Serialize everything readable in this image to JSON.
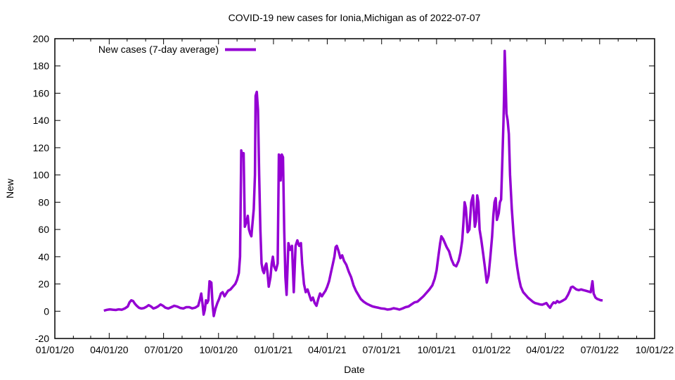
{
  "page": {
    "background": "#ffffff",
    "text_color": "#000000",
    "axis_color": "#000000"
  },
  "chart_data": {
    "type": "line",
    "title": "COVID-19 new cases for Ionia,Michigan as of 2022-07-07",
    "xlabel": "Date",
    "ylabel": "New",
    "grid": false,
    "legend_position": "top-left-inside",
    "legend": [
      {
        "label": "New cases (7-day average)",
        "color": "#9400d3"
      }
    ],
    "x_range": [
      "2020-01-01",
      "2022-10-01"
    ],
    "ylim": [
      -20,
      200
    ],
    "y_ticks": [
      {
        "value": -20,
        "label": "-20"
      },
      {
        "value": 0,
        "label": "0"
      },
      {
        "value": 20,
        "label": "20"
      },
      {
        "value": 40,
        "label": "40"
      },
      {
        "value": 60,
        "label": "60"
      },
      {
        "value": 80,
        "label": "80"
      },
      {
        "value": 100,
        "label": "100"
      },
      {
        "value": 120,
        "label": "120"
      },
      {
        "value": 140,
        "label": "140"
      },
      {
        "value": 160,
        "label": "160"
      },
      {
        "value": 180,
        "label": "180"
      },
      {
        "value": 200,
        "label": "200"
      }
    ],
    "x_major_ticks": [
      {
        "date": "2020-01-01",
        "label": "01/01/20"
      },
      {
        "date": "2020-04-01",
        "label": "04/01/20"
      },
      {
        "date": "2020-07-01",
        "label": "07/01/20"
      },
      {
        "date": "2020-10-01",
        "label": "10/01/20"
      },
      {
        "date": "2021-01-01",
        "label": "01/01/21"
      },
      {
        "date": "2021-04-01",
        "label": "04/01/21"
      },
      {
        "date": "2021-07-01",
        "label": "07/01/21"
      },
      {
        "date": "2021-10-01",
        "label": "10/01/21"
      },
      {
        "date": "2022-01-01",
        "label": "01/01/22"
      },
      {
        "date": "2022-04-01",
        "label": "04/01/22"
      },
      {
        "date": "2022-07-01",
        "label": "07/01/22"
      },
      {
        "date": "2022-10-01",
        "label": "10/01/22"
      }
    ],
    "x_minor_tick_interval": "month",
    "series": [
      {
        "name": "New cases (7-day average)",
        "color": "#9400d3",
        "points": [
          [
            "2020-03-23",
            0.4
          ],
          [
            "2020-03-28",
            1
          ],
          [
            "2020-04-02",
            1.4
          ],
          [
            "2020-04-07",
            1.1
          ],
          [
            "2020-04-12",
            0.9
          ],
          [
            "2020-04-17",
            1.4
          ],
          [
            "2020-04-22",
            1.1
          ],
          [
            "2020-04-27",
            2
          ],
          [
            "2020-05-02",
            3.5
          ],
          [
            "2020-05-05",
            6.5
          ],
          [
            "2020-05-08",
            8
          ],
          [
            "2020-05-11",
            7.5
          ],
          [
            "2020-05-14",
            5.5
          ],
          [
            "2020-05-17",
            4
          ],
          [
            "2020-05-21",
            2.5
          ],
          [
            "2020-05-25",
            2
          ],
          [
            "2020-05-29",
            2.3
          ],
          [
            "2020-06-02",
            3.2
          ],
          [
            "2020-06-06",
            4.5
          ],
          [
            "2020-06-10",
            3.5
          ],
          [
            "2020-06-14",
            2
          ],
          [
            "2020-06-18",
            2.6
          ],
          [
            "2020-06-22",
            3.6
          ],
          [
            "2020-06-26",
            5
          ],
          [
            "2020-06-30",
            4
          ],
          [
            "2020-07-04",
            2.6
          ],
          [
            "2020-07-09",
            2
          ],
          [
            "2020-07-14",
            3
          ],
          [
            "2020-07-19",
            4
          ],
          [
            "2020-07-24",
            3.4
          ],
          [
            "2020-07-29",
            2.4
          ],
          [
            "2020-08-03",
            2
          ],
          [
            "2020-08-08",
            3
          ],
          [
            "2020-08-13",
            3
          ],
          [
            "2020-08-18",
            2.1
          ],
          [
            "2020-08-23",
            2.6
          ],
          [
            "2020-08-28",
            4
          ],
          [
            "2020-08-31",
            9
          ],
          [
            "2020-09-02",
            13
          ],
          [
            "2020-09-04",
            6
          ],
          [
            "2020-09-06",
            -2.5
          ],
          [
            "2020-09-08",
            1
          ],
          [
            "2020-09-10",
            8
          ],
          [
            "2020-09-12",
            6
          ],
          [
            "2020-09-14",
            8
          ],
          [
            "2020-09-16",
            22
          ],
          [
            "2020-09-19",
            21
          ],
          [
            "2020-09-21",
            5
          ],
          [
            "2020-09-23",
            -3.5
          ],
          [
            "2020-09-26",
            2
          ],
          [
            "2020-09-29",
            6
          ],
          [
            "2020-10-02",
            9
          ],
          [
            "2020-10-05",
            13
          ],
          [
            "2020-10-08",
            14
          ],
          [
            "2020-10-11",
            11
          ],
          [
            "2020-10-14",
            13
          ],
          [
            "2020-10-17",
            15
          ],
          [
            "2020-10-21",
            16
          ],
          [
            "2020-10-25",
            18
          ],
          [
            "2020-10-29",
            20
          ],
          [
            "2020-11-01",
            23
          ],
          [
            "2020-11-04",
            28
          ],
          [
            "2020-11-06",
            40
          ],
          [
            "2020-11-08",
            118
          ],
          [
            "2020-11-10",
            114
          ],
          [
            "2020-11-12",
            116
          ],
          [
            "2020-11-14",
            62
          ],
          [
            "2020-11-17",
            66
          ],
          [
            "2020-11-19",
            70
          ],
          [
            "2020-11-21",
            60
          ],
          [
            "2020-11-23",
            57
          ],
          [
            "2020-11-25",
            55
          ],
          [
            "2020-11-27",
            65
          ],
          [
            "2020-11-29",
            75
          ],
          [
            "2020-12-01",
            100
          ],
          [
            "2020-12-02",
            158
          ],
          [
            "2020-12-04",
            161
          ],
          [
            "2020-12-06",
            148
          ],
          [
            "2020-12-08",
            100
          ],
          [
            "2020-12-10",
            60
          ],
          [
            "2020-12-12",
            35
          ],
          [
            "2020-12-14",
            30
          ],
          [
            "2020-12-16",
            28
          ],
          [
            "2020-12-18",
            33
          ],
          [
            "2020-12-20",
            35
          ],
          [
            "2020-12-22",
            28
          ],
          [
            "2020-12-24",
            18
          ],
          [
            "2020-12-27",
            25
          ],
          [
            "2020-12-29",
            35
          ],
          [
            "2020-12-31",
            40
          ],
          [
            "2021-01-02",
            33
          ],
          [
            "2021-01-05",
            30
          ],
          [
            "2021-01-08",
            35
          ],
          [
            "2021-01-10",
            115
          ],
          [
            "2021-01-12",
            114
          ],
          [
            "2021-01-13",
            96
          ],
          [
            "2021-01-15",
            115
          ],
          [
            "2021-01-17",
            113
          ],
          [
            "2021-01-19",
            60
          ],
          [
            "2021-01-21",
            25
          ],
          [
            "2021-01-23",
            12
          ],
          [
            "2021-01-26",
            50
          ],
          [
            "2021-01-29",
            45
          ],
          [
            "2021-02-01",
            48
          ],
          [
            "2021-02-04",
            14
          ],
          [
            "2021-02-07",
            48
          ],
          [
            "2021-02-10",
            52
          ],
          [
            "2021-02-13",
            48
          ],
          [
            "2021-02-16",
            50
          ],
          [
            "2021-02-18",
            35
          ],
          [
            "2021-02-21",
            20
          ],
          [
            "2021-02-24",
            14
          ],
          [
            "2021-02-27",
            16
          ],
          [
            "2021-03-02",
            12
          ],
          [
            "2021-03-05",
            8
          ],
          [
            "2021-03-08",
            10
          ],
          [
            "2021-03-11",
            6
          ],
          [
            "2021-03-14",
            4
          ],
          [
            "2021-03-17",
            9
          ],
          [
            "2021-03-20",
            13
          ],
          [
            "2021-03-23",
            11
          ],
          [
            "2021-03-26",
            13
          ],
          [
            "2021-03-29",
            15
          ],
          [
            "2021-04-01",
            18
          ],
          [
            "2021-04-04",
            22
          ],
          [
            "2021-04-07",
            28
          ],
          [
            "2021-04-10",
            34
          ],
          [
            "2021-04-13",
            40
          ],
          [
            "2021-04-15",
            47
          ],
          [
            "2021-04-17",
            48
          ],
          [
            "2021-04-20",
            44
          ],
          [
            "2021-04-23",
            39
          ],
          [
            "2021-04-26",
            41
          ],
          [
            "2021-04-29",
            37
          ],
          [
            "2021-05-03",
            34
          ],
          [
            "2021-05-07",
            29
          ],
          [
            "2021-05-11",
            25
          ],
          [
            "2021-05-15",
            19
          ],
          [
            "2021-05-19",
            15
          ],
          [
            "2021-05-23",
            12
          ],
          [
            "2021-05-27",
            9
          ],
          [
            "2021-06-01",
            7
          ],
          [
            "2021-06-06",
            5.5
          ],
          [
            "2021-06-11",
            4.5
          ],
          [
            "2021-06-16",
            3.5
          ],
          [
            "2021-06-21",
            3
          ],
          [
            "2021-06-26",
            2.5
          ],
          [
            "2021-07-01",
            2
          ],
          [
            "2021-07-06",
            1.8
          ],
          [
            "2021-07-11",
            1.2
          ],
          [
            "2021-07-16",
            1.5
          ],
          [
            "2021-07-21",
            2.2
          ],
          [
            "2021-07-26",
            1.8
          ],
          [
            "2021-07-31",
            1.2
          ],
          [
            "2021-08-05",
            2
          ],
          [
            "2021-08-10",
            3
          ],
          [
            "2021-08-15",
            3.5
          ],
          [
            "2021-08-20",
            5
          ],
          [
            "2021-08-25",
            6.5
          ],
          [
            "2021-08-30",
            7
          ],
          [
            "2021-09-04",
            9
          ],
          [
            "2021-09-09",
            11
          ],
          [
            "2021-09-14",
            13.5
          ],
          [
            "2021-09-19",
            16
          ],
          [
            "2021-09-24",
            19
          ],
          [
            "2021-09-28",
            24
          ],
          [
            "2021-10-01",
            30
          ],
          [
            "2021-10-04",
            40
          ],
          [
            "2021-10-07",
            50
          ],
          [
            "2021-10-09",
            55
          ],
          [
            "2021-10-12",
            53
          ],
          [
            "2021-10-15",
            50
          ],
          [
            "2021-10-18",
            47
          ],
          [
            "2021-10-22",
            44
          ],
          [
            "2021-10-26",
            38
          ],
          [
            "2021-10-30",
            34
          ],
          [
            "2021-11-03",
            33
          ],
          [
            "2021-11-07",
            37
          ],
          [
            "2021-11-10",
            43
          ],
          [
            "2021-11-13",
            52
          ],
          [
            "2021-11-15",
            65
          ],
          [
            "2021-11-17",
            80
          ],
          [
            "2021-11-19",
            76
          ],
          [
            "2021-11-22",
            58
          ],
          [
            "2021-11-25",
            60
          ],
          [
            "2021-11-28",
            80
          ],
          [
            "2021-12-01",
            85
          ],
          [
            "2021-12-04",
            62
          ],
          [
            "2021-12-06",
            66
          ],
          [
            "2021-12-08",
            85
          ],
          [
            "2021-12-10",
            80
          ],
          [
            "2021-12-12",
            60
          ],
          [
            "2021-12-15",
            52
          ],
          [
            "2021-12-18",
            42
          ],
          [
            "2021-12-21",
            32
          ],
          [
            "2021-12-24",
            21
          ],
          [
            "2021-12-27",
            26
          ],
          [
            "2021-12-30",
            40
          ],
          [
            "2022-01-02",
            55
          ],
          [
            "2022-01-04",
            70
          ],
          [
            "2022-01-06",
            80
          ],
          [
            "2022-01-08",
            83
          ],
          [
            "2022-01-10",
            67
          ],
          [
            "2022-01-13",
            72
          ],
          [
            "2022-01-15",
            80
          ],
          [
            "2022-01-17",
            82
          ],
          [
            "2022-01-19",
            110
          ],
          [
            "2022-01-21",
            140
          ],
          [
            "2022-01-22",
            158
          ],
          [
            "2022-01-23",
            191
          ],
          [
            "2022-01-24",
            178
          ],
          [
            "2022-01-26",
            145
          ],
          [
            "2022-01-28",
            140
          ],
          [
            "2022-01-30",
            130
          ],
          [
            "2022-02-01",
            100
          ],
          [
            "2022-02-04",
            75
          ],
          [
            "2022-02-07",
            56
          ],
          [
            "2022-02-10",
            42
          ],
          [
            "2022-02-13",
            32
          ],
          [
            "2022-02-16",
            24
          ],
          [
            "2022-02-19",
            18
          ],
          [
            "2022-02-23",
            14
          ],
          [
            "2022-02-27",
            12
          ],
          [
            "2022-03-03",
            10
          ],
          [
            "2022-03-07",
            8.5
          ],
          [
            "2022-03-11",
            7
          ],
          [
            "2022-03-15",
            6
          ],
          [
            "2022-03-19",
            5.5
          ],
          [
            "2022-03-23",
            5
          ],
          [
            "2022-03-27",
            4.8
          ],
          [
            "2022-03-31",
            5.5
          ],
          [
            "2022-04-03",
            6
          ],
          [
            "2022-04-06",
            4
          ],
          [
            "2022-04-09",
            2.5
          ],
          [
            "2022-04-12",
            5
          ],
          [
            "2022-04-15",
            6.5
          ],
          [
            "2022-04-18",
            6
          ],
          [
            "2022-04-21",
            7.5
          ],
          [
            "2022-04-24",
            6.5
          ],
          [
            "2022-04-27",
            7
          ],
          [
            "2022-05-01",
            8
          ],
          [
            "2022-05-05",
            9
          ],
          [
            "2022-05-09",
            12
          ],
          [
            "2022-05-12",
            15
          ],
          [
            "2022-05-14",
            17.5
          ],
          [
            "2022-05-17",
            18
          ],
          [
            "2022-05-20",
            17
          ],
          [
            "2022-05-23",
            16
          ],
          [
            "2022-05-27",
            15.5
          ],
          [
            "2022-05-31",
            16
          ],
          [
            "2022-06-04",
            15.5
          ],
          [
            "2022-06-08",
            15
          ],
          [
            "2022-06-12",
            14.5
          ],
          [
            "2022-06-16",
            14
          ],
          [
            "2022-06-19",
            22
          ],
          [
            "2022-06-21",
            13
          ],
          [
            "2022-06-24",
            10
          ],
          [
            "2022-06-27",
            9
          ],
          [
            "2022-06-30",
            8.5
          ],
          [
            "2022-07-03",
            8
          ],
          [
            "2022-07-06",
            8
          ]
        ]
      }
    ]
  }
}
